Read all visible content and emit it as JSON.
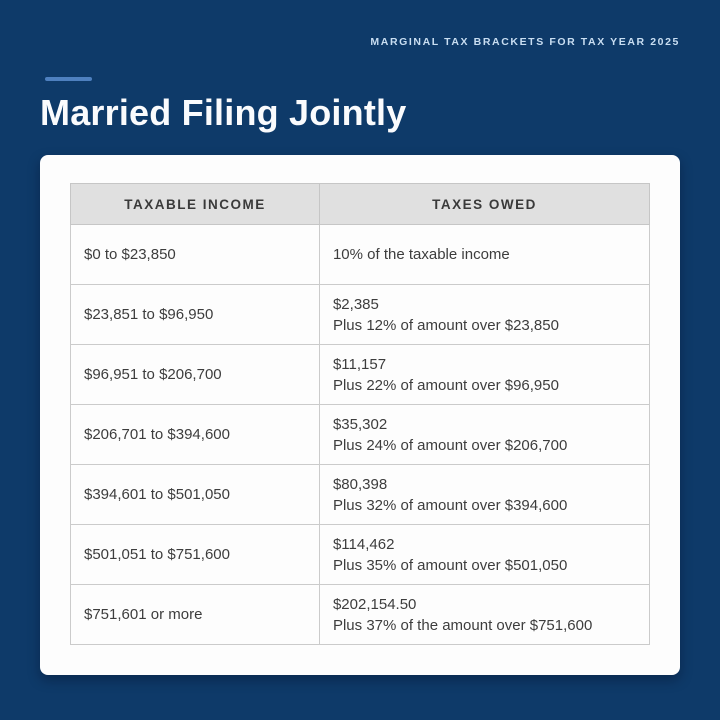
{
  "page": {
    "eyebrow": "MARGINAL TAX BRACKETS FOR TAX YEAR 2025",
    "title": "Married Filing Jointly"
  },
  "colors": {
    "background": "#0e3a69",
    "accent_dash": "#4e80bf",
    "card_background": "#fdfdfd",
    "header_background": "#e0e0e0",
    "table_border": "#cbcbcb",
    "table_text": "#3d3d3d",
    "eyebrow_text": "#c9def2",
    "title_text": "#fafbfd"
  },
  "table": {
    "columns": [
      "TAXABLE INCOME",
      "TAXES OWED"
    ],
    "rows": [
      {
        "income": "$0 to $23,850",
        "owed": [
          "10% of the taxable income"
        ]
      },
      {
        "income": "$23,851 to $96,950",
        "owed": [
          "$2,385",
          "Plus 12% of amount over $23,850"
        ]
      },
      {
        "income": "$96,951 to $206,700",
        "owed": [
          "$11,157",
          "Plus 22% of amount over $96,950"
        ]
      },
      {
        "income": "$206,701 to $394,600",
        "owed": [
          "$35,302",
          "Plus 24% of amount over $206,700"
        ]
      },
      {
        "income": "$394,601 to $501,050",
        "owed": [
          "$80,398",
          "Plus 32% of amount over $394,600"
        ]
      },
      {
        "income": "$501,051 to $751,600",
        "owed": [
          "$114,462",
          "Plus 35% of amount over $501,050"
        ]
      },
      {
        "income": "$751,601 or more",
        "owed": [
          "$202,154.50",
          "Plus 37% of the amount over $751,600"
        ]
      }
    ]
  },
  "chart_data": {
    "type": "table",
    "title": "Married Filing Jointly",
    "subtitle": "MARGINAL TAX BRACKETS FOR TAX YEAR 2025",
    "columns": [
      "TAXABLE INCOME",
      "TAXES OWED"
    ],
    "rows": [
      [
        "$0 to $23,850",
        "10% of the taxable income"
      ],
      [
        "$23,851 to $96,950",
        "$2,385 Plus 12% of amount over $23,850"
      ],
      [
        "$96,951 to $206,700",
        "$11,157 Plus 22% of amount over $96,950"
      ],
      [
        "$206,701 to $394,600",
        "$35,302 Plus 24% of amount over $206,700"
      ],
      [
        "$394,601 to $501,050",
        "$80,398 Plus 32% of amount over $394,600"
      ],
      [
        "$501,051 to $751,600",
        "$114,462 Plus 35% of amount over $501,050"
      ],
      [
        "$751,601 or more",
        "$202,154.50 Plus 37% of the amount over $751,600"
      ]
    ]
  }
}
